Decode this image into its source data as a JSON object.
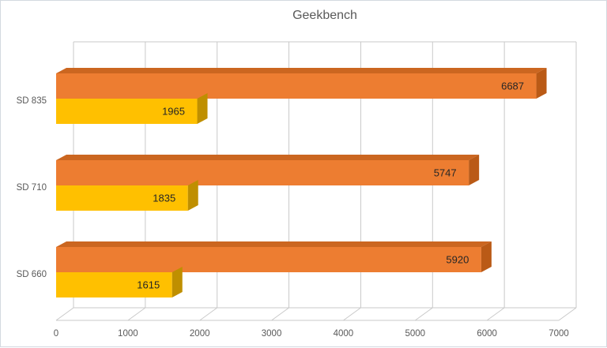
{
  "chart_data": {
    "type": "bar",
    "orientation": "horizontal-3d",
    "title": "Geekbench",
    "categories": [
      "SD 835",
      "SD 710",
      "SD 660"
    ],
    "series": [
      {
        "color_key": "series1",
        "values": [
          6687,
          5747,
          5920
        ]
      },
      {
        "color_key": "series2",
        "values": [
          1965,
          1835,
          1615
        ]
      }
    ],
    "xlim": [
      0,
      7000
    ],
    "x_tick_step": 1000,
    "x_tick_labels": [
      "0",
      "1000",
      "2000",
      "3000",
      "4000",
      "5000",
      "6000",
      "7000"
    ],
    "data_labels": true,
    "legend": "none",
    "grid": "vertical"
  },
  "colors": {
    "series1_front": "#ED7D31",
    "series1_side": "#BA5A16",
    "series1_top": "#CB6620",
    "series2_front": "#FFC000",
    "series2_side": "#BF8F00",
    "grid_line": "#C9C9C9",
    "axis_text": "#595959",
    "title_text": "#595959",
    "value_text": "#262626",
    "background": "#FFFFFF",
    "window_border": "#D3D9E0"
  }
}
